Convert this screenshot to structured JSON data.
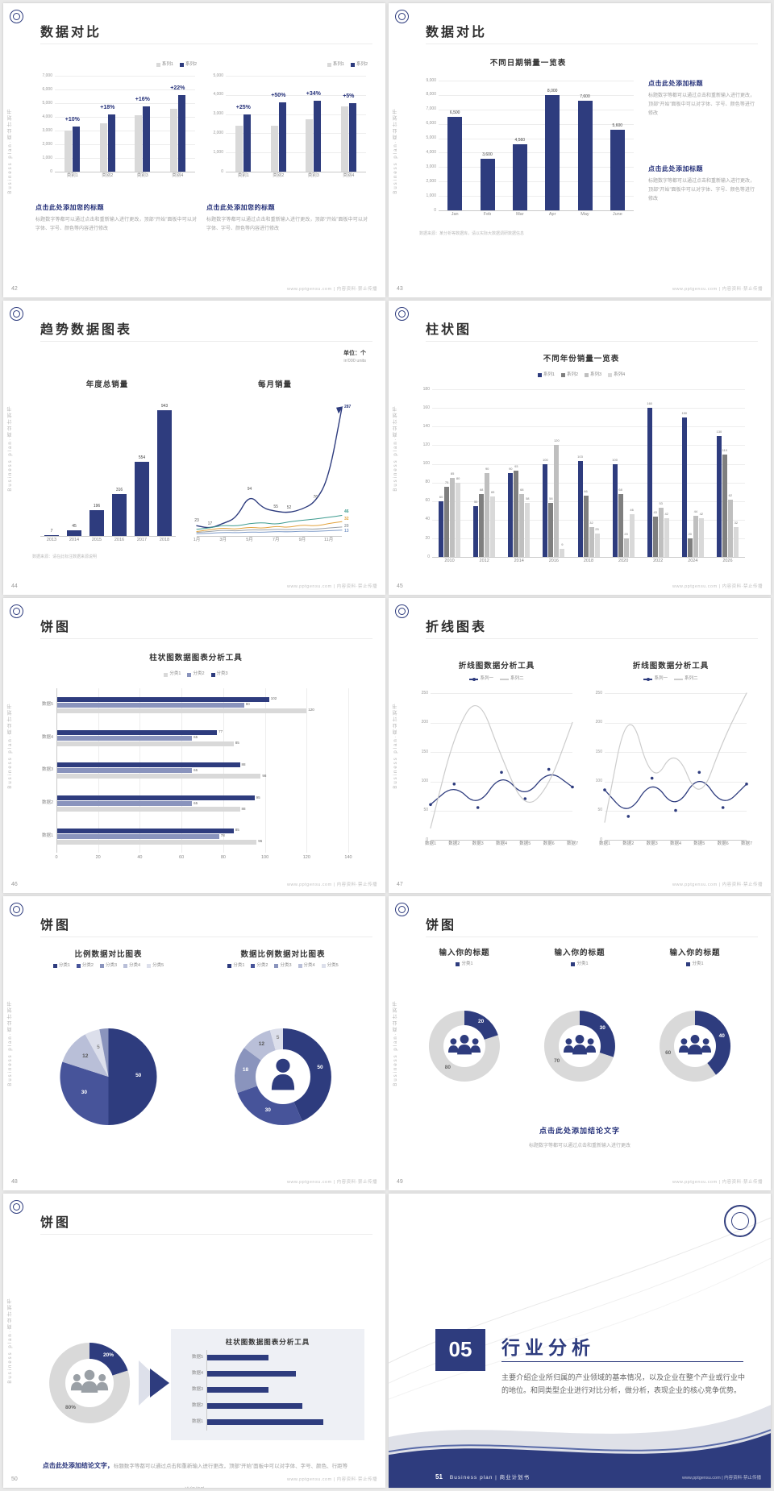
{
  "common": {
    "brand_side_text": "Business plan·商业计划书",
    "footer_right": "www.pptgensu.com | 内容资料·禁止传播"
  },
  "palette": {
    "navy": "#2e3c7e",
    "navy2": "#47549a",
    "blue_gray": "#8a94bd",
    "light_blue_gray": "#b9bfd8",
    "pale": "#dcdfeb",
    "gray": "#7f7f7f",
    "light_gray": "#d9d9d9"
  },
  "slides": {
    "s42": {
      "page": "42",
      "title": "数据对比",
      "block1_heading": "点击此处添加您的标题",
      "block1_body": "标题数字等都可以通过点击和重新输入进行更改，顶部“开始”面板中可以对字体、字号、颜色等内容进行修改",
      "block2_heading": "点击此处添加您的标题",
      "block2_body": "标题数字等都可以通过点击和重新输入进行更改，顶部“开始”面板中可以对字体、字号、颜色等内容进行修改"
    },
    "s43": {
      "page": "43",
      "title": "数据对比",
      "note": "数据来源：某分析等数据库，请以实际大数据调研数据信息",
      "blocks": [
        {
          "heading": "点击此处添加标题",
          "body": "标题数字等都可以通过点击和重新输入进行更改，顶部“开始”面板中可以对字体、字号、颜色等进行修改"
        },
        {
          "heading": "点击此处添加标题",
          "body": "标题数字等都可以通过点击和重新输入进行更改，顶部“开始”面板中可以对字体、字号、颜色等进行修改"
        }
      ]
    },
    "s44": {
      "page": "44",
      "title": "趋势数据图表",
      "unit_line1": "单位：个",
      "unit_line2": "in'000 units",
      "note": "数据来源：请在此标注数据来源说明"
    },
    "s45": {
      "page": "45",
      "title": "柱状图"
    },
    "s46": {
      "page": "46",
      "title": "饼图"
    },
    "s47": {
      "page": "47",
      "title": "折线图表"
    },
    "s48": {
      "page": "48",
      "title": "饼图"
    },
    "s49": {
      "page": "49",
      "title": "饼图",
      "conclusion_heading": "点击此处添加结论文字",
      "conclusion_body": "标题数字等都可以通过点击和重新输入进行更改"
    },
    "s50": {
      "page": "50",
      "title": "饼图",
      "panel_title": "柱状图数据图表分析工具",
      "conclusion_heading": "点击此处添加结论文字，",
      "conclusion_body": "标题数字等都可以通过点击和重新输入进行更改，顶部“开始”面板中可以对字体、字号、颜色、行距等进行修改"
    },
    "s51": {
      "page": "51",
      "number": "05",
      "heading": "行业分析",
      "body": "主要介绍企业所归属的产业领域的基本情况，以及企业在整个产业或行业中的地位。和同类型企业进行对比分析，做分析，表现企业的核心竞争优势。",
      "footer_text": "Business plan | 商业计划书"
    }
  },
  "charts": {
    "c42a": {
      "type": "column",
      "ymax": 7000,
      "ystep": 1000,
      "yfmt": "comma",
      "categories": [
        "类别1",
        "类别2",
        "类别3",
        "类别4"
      ],
      "series": [
        {
          "name": "系列1",
          "color": "#d9d9d9",
          "values": [
            3000,
            3560,
            4100,
            4600
          ]
        },
        {
          "name": "系列2",
          "color": "#2e3c7e",
          "values": [
            3300,
            4200,
            4750,
            5600
          ]
        }
      ],
      "groupLabels": [
        "+10%",
        "+18%",
        "+16%",
        "+22%"
      ],
      "legend": [
        {
          "name": "系列1",
          "color": "#d9d9d9"
        },
        {
          "name": "系列2",
          "color": "#2e3c7e"
        }
      ]
    },
    "c42b": {
      "type": "column",
      "ymax": 5000,
      "ystep": 1000,
      "yfmt": "comma",
      "categories": [
        "类别1",
        "类别2",
        "类别3",
        "类别4"
      ],
      "series": [
        {
          "name": "系列1",
          "color": "#d9d9d9",
          "values": [
            2400,
            2400,
            2750,
            3400
          ]
        },
        {
          "name": "系列2",
          "color": "#2e3c7e",
          "values": [
            3000,
            3600,
            3680,
            3570
          ]
        }
      ],
      "groupLabels": [
        "+25%",
        "+50%",
        "+34%",
        "+5%"
      ],
      "legend": [
        {
          "name": "系列1",
          "color": "#d9d9d9"
        },
        {
          "name": "系列2",
          "color": "#2e3c7e"
        }
      ]
    },
    "c43": {
      "type": "column",
      "title": "不同日期销量一览表",
      "ymax": 9000,
      "ystep": 1000,
      "yfmt": "comma",
      "valueLabels": true,
      "categories": [
        "Jan",
        "Feb",
        "Mar",
        "Apr",
        "May",
        "June"
      ],
      "series": [
        {
          "name": "销量",
          "color": "#2e3c7e",
          "values": [
            6500,
            3600,
            4560,
            8000,
            7600,
            5600
          ],
          "labels": [
            "6,500",
            "3,600",
            "4,560",
            "8,000",
            "7,600",
            "5,600"
          ]
        }
      ]
    },
    "c44a": {
      "type": "column",
      "title": "年度总销量",
      "ymax": 1000,
      "ystep": 200,
      "grid": false,
      "ylabels": false,
      "valueLabels": true,
      "categories": [
        "2013",
        "2014",
        "2015",
        "2016",
        "2017",
        "2018"
      ],
      "series": [
        {
          "name": "年度总销量",
          "color": "#2e3c7e",
          "values": [
            7,
            45,
            196,
            316,
            554,
            943
          ]
        }
      ]
    },
    "c44b": {
      "type": "line",
      "title": "每月销量",
      "ymax": 300,
      "grid": false,
      "ylabels": false,
      "xcats": [
        "1月",
        "",
        "3月",
        "",
        "5月",
        "",
        "7月",
        "",
        "9月",
        "",
        "11月",
        ""
      ],
      "series": [
        {
          "name": "系列1",
          "color": "#2e3c7e",
          "width": 1.4,
          "arrow": true,
          "endLabel": "287",
          "values": [
            23,
            17,
            28,
            40,
            94,
            62,
            55,
            52,
            60,
            76,
            130,
            287
          ],
          "pointLabels": [
            "23",
            "17",
            "",
            "",
            "94",
            "",
            "55",
            "52",
            "",
            "76",
            "",
            ""
          ]
        },
        {
          "name": "系列2",
          "color": "#3d9b8f",
          "endLabel": "46",
          "values": [
            15,
            18,
            24,
            22,
            28,
            30,
            26,
            32,
            35,
            38,
            42,
            46
          ]
        },
        {
          "name": "系列3",
          "color": "#e2a23c",
          "endLabel": "32",
          "values": [
            10,
            14,
            18,
            15,
            20,
            17,
            22,
            19,
            25,
            22,
            28,
            32
          ]
        },
        {
          "name": "系列4",
          "color": "#9aa0a6",
          "endLabel": "20",
          "values": [
            8,
            10,
            13,
            11,
            14,
            13,
            15,
            14,
            16,
            15,
            18,
            20
          ]
        },
        {
          "name": "系列5",
          "color": "#7f9cc9",
          "endLabel": "13",
          "values": [
            5,
            6,
            8,
            7,
            9,
            8,
            10,
            9,
            11,
            10,
            12,
            13
          ]
        }
      ]
    },
    "c45": {
      "type": "column",
      "title": "不同年份销量一览表",
      "ymax": 180,
      "ystep": 20,
      "valueLabels": true,
      "categories": [
        "2010",
        "2012",
        "2014",
        "2016",
        "2018",
        "2020",
        "2022",
        "2024",
        "2026"
      ],
      "series": [
        {
          "name": "系列1",
          "color": "#2e3c7e",
          "values": [
            60,
            55,
            90,
            100,
            103,
            100,
            160,
            150,
            130
          ]
        },
        {
          "name": "系列2",
          "color": "#7f7f7f",
          "values": [
            75,
            68,
            93,
            58,
            66,
            68,
            43,
            20,
            110
          ]
        },
        {
          "name": "系列3",
          "color": "#bfbfbf",
          "values": [
            85,
            90,
            68,
            120,
            32,
            20,
            53,
            44,
            62
          ]
        },
        {
          "name": "系列4",
          "color": "#d9d9d9",
          "values": [
            80,
            65,
            58,
            9,
            25,
            46,
            42,
            42,
            32
          ]
        }
      ],
      "legend": [
        {
          "name": "系列1",
          "color": "#2e3c7e"
        },
        {
          "name": "系列2",
          "color": "#7f7f7f"
        },
        {
          "name": "系列3",
          "color": "#bfbfbf"
        },
        {
          "name": "系列4",
          "color": "#d9d9d9"
        }
      ]
    },
    "c46": {
      "type": "barh",
      "title": "柱状图数据图表分析工具",
      "xmax": 140,
      "xstep": 20,
      "valueLabels": true,
      "categories": [
        "数据5",
        "数据4",
        "数据3",
        "数据2",
        "数据1"
      ],
      "series": [
        {
          "name": "分类3",
          "color": "#2e3c7e",
          "values": [
            102,
            77,
            88,
            95,
            85
          ]
        },
        {
          "name": "分类2",
          "color": "#8a94bd",
          "values": [
            90,
            65,
            65,
            65,
            78
          ]
        },
        {
          "name": "分类1",
          "color": "#d9d9d9",
          "values": [
            120,
            85,
            98,
            88,
            96
          ]
        }
      ],
      "legend": [
        {
          "name": "分类1",
          "color": "#d9d9d9"
        },
        {
          "name": "分类2",
          "color": "#8a94bd"
        },
        {
          "name": "分类3",
          "color": "#2e3c7e"
        }
      ]
    },
    "c47a": {
      "type": "line",
      "title": "折线图数据分析工具",
      "ymax": 250,
      "ystep": 50,
      "grid": true,
      "xcats": [
        "数据1",
        "数据2",
        "数据3",
        "数据4",
        "数据5",
        "数据6",
        "数据7"
      ],
      "series": [
        {
          "name": "系列一",
          "color": "#2e3c7e",
          "width": 1.3,
          "dots": true,
          "values": [
            60,
            95,
            55,
            115,
            70,
            120,
            90
          ]
        },
        {
          "name": "系列二",
          "color": "#cccccc",
          "width": 1.2,
          "values": [
            20,
            180,
            250,
            140,
            50,
            90,
            200
          ]
        }
      ],
      "legend": [
        {
          "name": "系列一",
          "color": "#2e3c7e",
          "marker": "line-dot"
        },
        {
          "name": "系列二",
          "color": "#cccccc",
          "marker": "line"
        }
      ]
    },
    "c47b": {
      "type": "line",
      "title": "折线图数据分析工具",
      "ymax": 250,
      "ystep": 50,
      "grid": true,
      "xcats": [
        "数据1",
        "数据2",
        "数据3",
        "数据4",
        "数据5",
        "数据6",
        "数据7"
      ],
      "series": [
        {
          "name": "系列一",
          "color": "#2e3c7e",
          "width": 1.3,
          "dots": true,
          "values": [
            85,
            40,
            105,
            50,
            115,
            55,
            95
          ]
        },
        {
          "name": "系列二",
          "color": "#cccccc",
          "width": 1.2,
          "values": [
            30,
            240,
            90,
            160,
            60,
            170,
            250
          ]
        }
      ],
      "legend": [
        {
          "name": "系列一",
          "color": "#2e3c7e",
          "marker": "line-dot"
        },
        {
          "name": "系列二",
          "color": "#cccccc",
          "marker": "line"
        }
      ]
    },
    "c48a": {
      "type": "pie",
      "title": "比例数据对比图表",
      "values": [
        50,
        30,
        12,
        5,
        3
      ],
      "colors": [
        "#2e3c7e",
        "#47549a",
        "#b9bfd8",
        "#dcdfeb",
        "#8a94bd"
      ],
      "labels": [
        "50",
        "30",
        "12",
        "5",
        ""
      ],
      "labelColors": [
        "#ffffff",
        "#ffffff",
        "#555555",
        "#888888",
        "#ffffff"
      ],
      "legend": [
        {
          "name": "分类1",
          "color": "#2e3c7e"
        },
        {
          "name": "分类2",
          "color": "#47549a"
        },
        {
          "name": "分类3",
          "color": "#8a94bd"
        },
        {
          "name": "分类4",
          "color": "#b9bfd8"
        },
        {
          "name": "分类5",
          "color": "#dcdfeb"
        }
      ]
    },
    "c48b": {
      "type": "donut",
      "title": "数据比例数据对比图表",
      "values": [
        50,
        30,
        18,
        12,
        5
      ],
      "colors": [
        "#2e3c7e",
        "#47549a",
        "#8a94bd",
        "#b9bfd8",
        "#dcdfeb"
      ],
      "labels": [
        "50",
        "30",
        "18",
        "12",
        "5"
      ],
      "labelColors": [
        "#ffffff",
        "#ffffff",
        "#ffffff",
        "#555555",
        "#888888"
      ],
      "icon": "person",
      "iconColor": "#2e3c7e",
      "legend": [
        {
          "name": "分类1",
          "color": "#2e3c7e"
        },
        {
          "name": "分类2",
          "color": "#47549a"
        },
        {
          "name": "分类3",
          "color": "#8a94bd"
        },
        {
          "name": "分类4",
          "color": "#b9bfd8"
        },
        {
          "name": "分类5",
          "color": "#dcdfeb"
        }
      ]
    },
    "c49a": {
      "type": "donut",
      "title": "输入你的标题",
      "values": [
        20,
        80
      ],
      "colors": [
        "#2e3c7e",
        "#d9d9d9"
      ],
      "labels": [
        "20",
        "80"
      ],
      "labelColors": [
        "#ffffff",
        "#666666"
      ],
      "icon": "group",
      "iconColor": "#2e3c7e",
      "legend": [
        {
          "name": "分类1",
          "color": "#2e3c7e"
        }
      ]
    },
    "c49b": {
      "type": "donut",
      "title": "输入你的标题",
      "values": [
        30,
        70
      ],
      "colors": [
        "#2e3c7e",
        "#d9d9d9"
      ],
      "labels": [
        "30",
        "70"
      ],
      "labelColors": [
        "#ffffff",
        "#666666"
      ],
      "icon": "group",
      "iconColor": "#2e3c7e",
      "legend": [
        {
          "name": "分类1",
          "color": "#2e3c7e"
        }
      ]
    },
    "c49c": {
      "type": "donut",
      "title": "输入你的标题",
      "values": [
        40,
        60
      ],
      "colors": [
        "#2e3c7e",
        "#d9d9d9"
      ],
      "labels": [
        "40",
        "60"
      ],
      "labelColors": [
        "#ffffff",
        "#666666"
      ],
      "icon": "group",
      "iconColor": "#2e3c7e",
      "legend": [
        {
          "name": "分类1",
          "color": "#2e3c7e"
        }
      ]
    },
    "c50a": {
      "type": "donut",
      "values": [
        20,
        80
      ],
      "colors": [
        "#2e3c7e",
        "#d9d9d9"
      ],
      "labels": [
        "20%",
        "80%"
      ],
      "labelColors": [
        "#ffffff",
        "#666666"
      ],
      "icon": "group",
      "iconColor": "#9aa0a6"
    },
    "c50b": {
      "type": "barh",
      "xmax": 100,
      "grid": false,
      "xlabels": false,
      "categories": [
        "数据5",
        "数据4",
        "数据3",
        "数据2",
        "数据1"
      ],
      "series": [
        {
          "name": "数据",
          "color": "#2e3c7e",
          "values": [
            45,
            65,
            45,
            70,
            85
          ]
        }
      ]
    }
  }
}
